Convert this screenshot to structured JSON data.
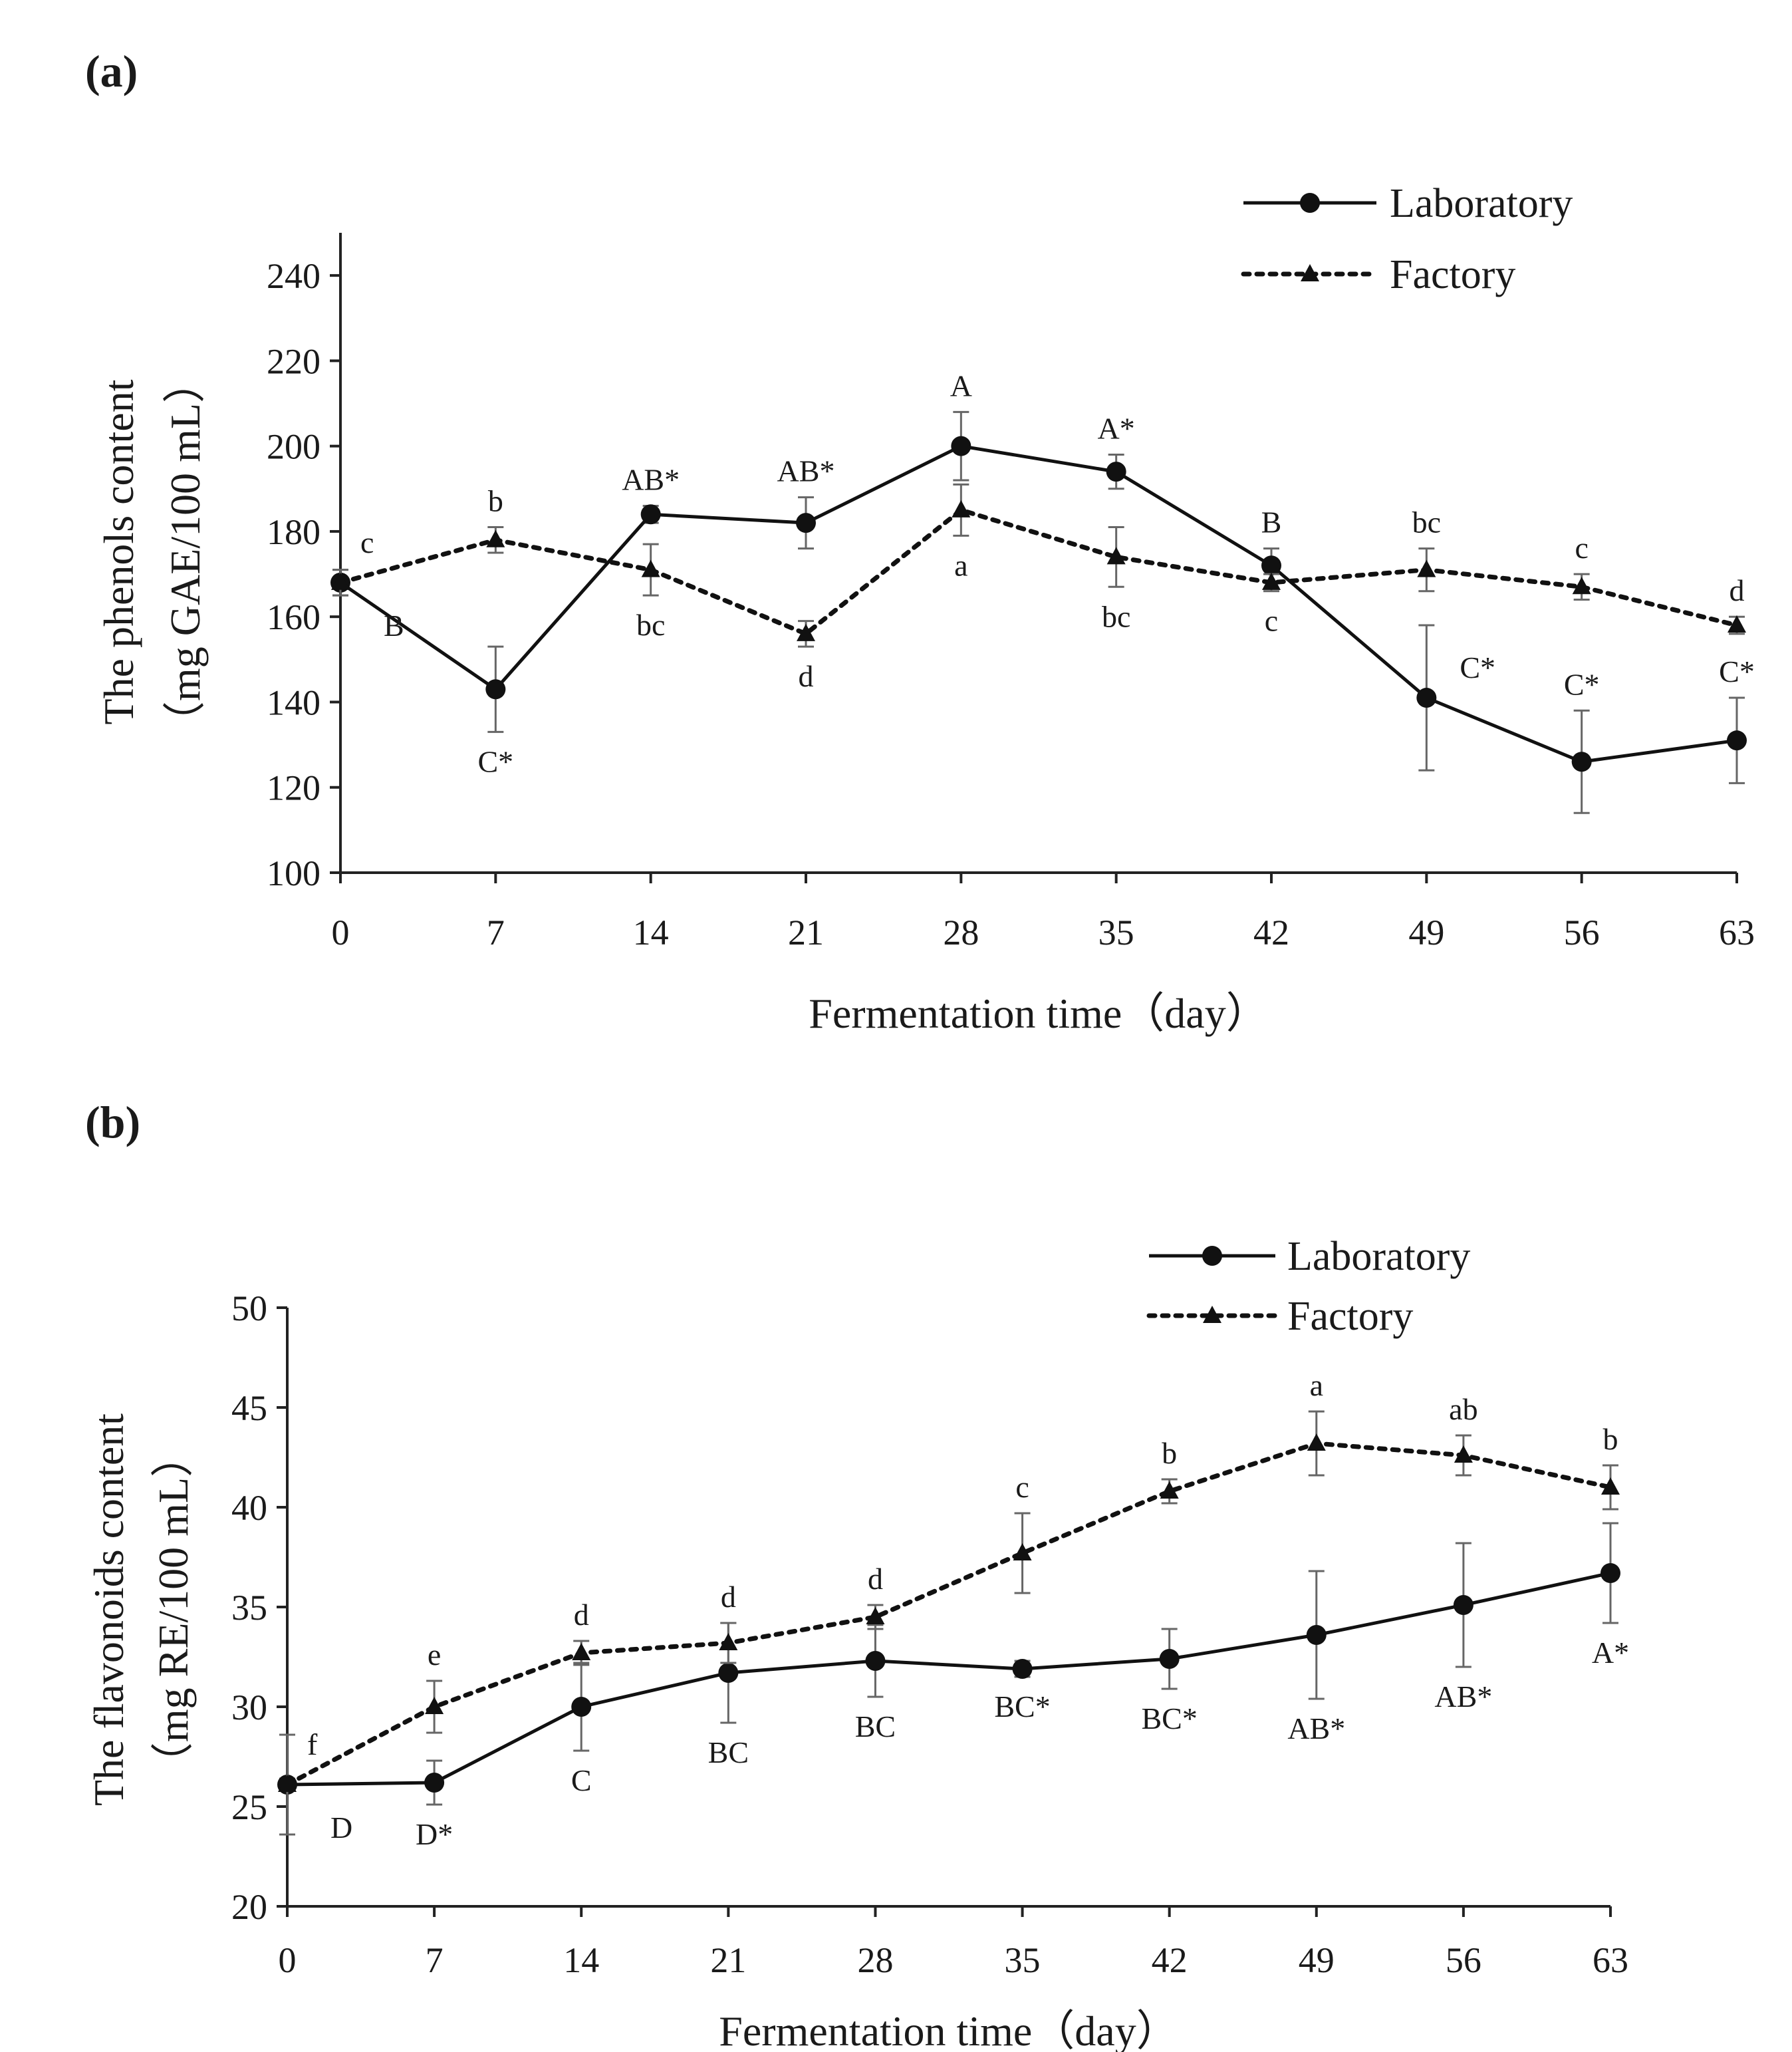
{
  "chart_data": [
    {
      "panel_label": "(a)",
      "type": "line",
      "xlabel": "Fermentation time（day）",
      "ylabel_line1": "The phenols content",
      "ylabel_line2": "（mg GAE/100 mL）",
      "x": [
        0,
        7,
        14,
        21,
        28,
        35,
        42,
        49,
        56,
        63
      ],
      "xlim": [
        0,
        63
      ],
      "ylim": [
        100,
        250
      ],
      "yticks": [
        100,
        120,
        140,
        160,
        180,
        200,
        220,
        240
      ],
      "legend_position": "top-right",
      "series": [
        {
          "name": "Laboratory",
          "style": "solid",
          "marker": "circle",
          "values": [
            168,
            143,
            184,
            182,
            200,
            194,
            172,
            141,
            126,
            131
          ],
          "errors": [
            3,
            10,
            2,
            6,
            8,
            4,
            4,
            17,
            12,
            10
          ],
          "labels": [
            "B",
            "C*",
            "AB*",
            "AB*",
            "A",
            "A*",
            "B",
            "C*",
            "C*",
            "C*"
          ],
          "label_side": [
            "below",
            "below",
            "above",
            "above",
            "above",
            "above",
            "above",
            "right",
            "above",
            "above"
          ]
        },
        {
          "name": "Factory",
          "style": "dotted",
          "marker": "triangle",
          "values": [
            168,
            178,
            171,
            156,
            185,
            174,
            168,
            171,
            167,
            158
          ],
          "errors": [
            3,
            3,
            6,
            3,
            6,
            7,
            2,
            5,
            3,
            2
          ],
          "labels": [
            "c",
            "b",
            "bc",
            "d",
            "a",
            "bc",
            "c",
            "bc",
            "c",
            "d"
          ],
          "label_side": [
            "above",
            "above",
            "below",
            "below",
            "below",
            "below",
            "below",
            "above",
            "above",
            "above"
          ]
        }
      ]
    },
    {
      "panel_label": "(b)",
      "type": "line",
      "xlabel": "Fermentation time（day）",
      "ylabel_line1": "The flavonoids content",
      "ylabel_line2": "（mg RE/100 mL）",
      "x": [
        0,
        7,
        14,
        21,
        28,
        35,
        42,
        49,
        56,
        63
      ],
      "xlim": [
        0,
        63
      ],
      "ylim": [
        20,
        50
      ],
      "yticks": [
        20,
        25,
        30,
        35,
        40,
        45,
        50
      ],
      "legend_position": "top-right",
      "series": [
        {
          "name": "Laboratory",
          "style": "solid",
          "marker": "circle",
          "values": [
            26.1,
            26.2,
            30.0,
            31.7,
            32.3,
            31.9,
            32.4,
            33.6,
            35.1,
            36.7
          ],
          "errors": [
            0.3,
            1.1,
            2.2,
            2.5,
            1.8,
            0.4,
            1.5,
            3.2,
            3.1,
            2.5
          ],
          "labels": [
            "D",
            "D*",
            "C",
            "BC",
            "BC",
            "BC*",
            "BC*",
            "AB*",
            "AB*",
            "A*"
          ],
          "label_side": [
            "below",
            "below",
            "below",
            "below",
            "below",
            "below",
            "below",
            "below",
            "below",
            "below"
          ]
        },
        {
          "name": "Factory",
          "style": "dotted",
          "marker": "triangle",
          "values": [
            26.1,
            30.0,
            32.7,
            33.2,
            34.5,
            37.7,
            40.8,
            43.2,
            42.6,
            41.0
          ],
          "errors": [
            2.5,
            1.3,
            0.6,
            1.0,
            0.6,
            2.0,
            0.6,
            1.6,
            1.0,
            1.1
          ],
          "labels": [
            "f",
            "e",
            "d",
            "d",
            "d",
            "c",
            "b",
            "a",
            "ab",
            "b"
          ],
          "label_side": [
            "above",
            "above",
            "above",
            "above",
            "above",
            "above",
            "above",
            "above",
            "above",
            "above"
          ]
        }
      ]
    }
  ]
}
